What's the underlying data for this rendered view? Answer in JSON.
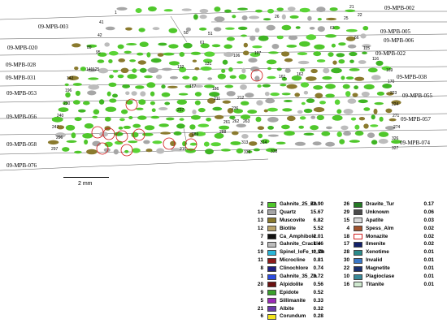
{
  "sample_labels": [
    "09-MPB-002",
    "09-MPB-003",
    "09-MPB-005",
    "09-MPB-006",
    "09-MPB-020",
    "09-MPB-022",
    "09-MPB-028",
    "09-MPB-031",
    "09-MPB-038",
    "09-MPB-053",
    "09-MPB-055",
    "09-MPB-056",
    "09-MPB-057",
    "09-MPB-058",
    "09-MPB-074",
    "09-MPB-076"
  ],
  "particle_numbers": [
    "1",
    "21",
    "22",
    "26",
    "25",
    "41",
    "42",
    "50",
    "61",
    "51",
    "63",
    "66",
    "89",
    "95",
    "107",
    "106",
    "115",
    "116",
    "125",
    "131",
    "132",
    "142",
    "141",
    "161",
    "162",
    "169",
    "170",
    "187",
    "186",
    "196",
    "211",
    "212",
    "223",
    "224",
    "237",
    "230",
    "236",
    "240",
    "247",
    "261",
    "262",
    "263",
    "271",
    "274",
    "288",
    "289",
    "296",
    "297",
    "313",
    "314",
    "316",
    "326",
    "327",
    "338",
    "339"
  ],
  "scale_bar": {
    "label": "2 mm"
  },
  "legend": {
    "left": [
      {
        "code": "2",
        "name": "Gahnite_25_Zn",
        "pct": "62.90",
        "color": "#4fc72b"
      },
      {
        "code": "14",
        "name": "Quartz",
        "pct": "15.67",
        "color": "#a6a6a6"
      },
      {
        "code": "13",
        "name": "Muscovite",
        "pct": "6.82",
        "color": "#8a7a2e"
      },
      {
        "code": "12",
        "name": "Biotite",
        "pct": "5.52",
        "color": "#b9a36a"
      },
      {
        "code": "7",
        "name": "Ca_Amphibole",
        "pct": "2.01",
        "color": "#111111"
      },
      {
        "code": "3",
        "name": "Gahnite_Crackle",
        "pct": "1.46",
        "color": "#bcbcbc"
      },
      {
        "code": "19",
        "name": "Spinel_loFe_tr_Zn",
        "pct": "0.98",
        "color": "#29b6d8"
      },
      {
        "code": "11",
        "name": "Microcline",
        "pct": "0.81",
        "color": "#8b1a1a"
      },
      {
        "code": "8",
        "name": "Clinochlore",
        "pct": "0.74",
        "color": "#1f1f80"
      },
      {
        "code": "1",
        "name": "Gahnite_35_Zn",
        "pct": "0.72",
        "color": "#2c4ce0"
      },
      {
        "code": "20",
        "name": "Alpidolite",
        "pct": "0.56",
        "color": "#6b1111"
      },
      {
        "code": "9",
        "name": "Epidote",
        "pct": "0.52",
        "color": "#3aa02c"
      },
      {
        "code": "5",
        "name": "Sillimanite",
        "pct": "0.33",
        "color": "#9b2ab8"
      },
      {
        "code": "21",
        "name": "Albite",
        "pct": "0.32",
        "color": "#6a3aa8"
      },
      {
        "code": "6",
        "name": "Corundum",
        "pct": "0.28",
        "color": "#f2e41c"
      }
    ],
    "right": [
      {
        "code": "26",
        "name": "Dravite_Tur",
        "pct": "0.17",
        "color": "#247a24"
      },
      {
        "code": "29",
        "name": "Unknown",
        "pct": "0.06",
        "color": "#4c4c4c"
      },
      {
        "code": "15",
        "name": "Apatite",
        "pct": "0.03",
        "color": "#d8d8d8"
      },
      {
        "code": "4",
        "name": "Spess_Alm",
        "pct": "0.02",
        "color": "#a0522d"
      },
      {
        "code": "18",
        "name": "Monazite",
        "pct": "0.02",
        "color": "#ffffff"
      },
      {
        "code": "17",
        "name": "Ilmenite",
        "pct": "0.02",
        "color": "#12216a"
      },
      {
        "code": "28",
        "name": "Xenotime",
        "pct": "0.01",
        "color": "#2a8a8a"
      },
      {
        "code": "30",
        "name": "Invalid",
        "pct": "0.01",
        "color": "#3a78c8"
      },
      {
        "code": "22",
        "name": "Magnetite",
        "pct": "0.01",
        "color": "#1a3070"
      },
      {
        "code": "10",
        "name": "Plagioclase",
        "pct": "0.01",
        "color": "#3a8a99"
      },
      {
        "code": "16",
        "name": "Titanite",
        "pct": "0.01",
        "color": "#cfe8cf"
      }
    ]
  }
}
